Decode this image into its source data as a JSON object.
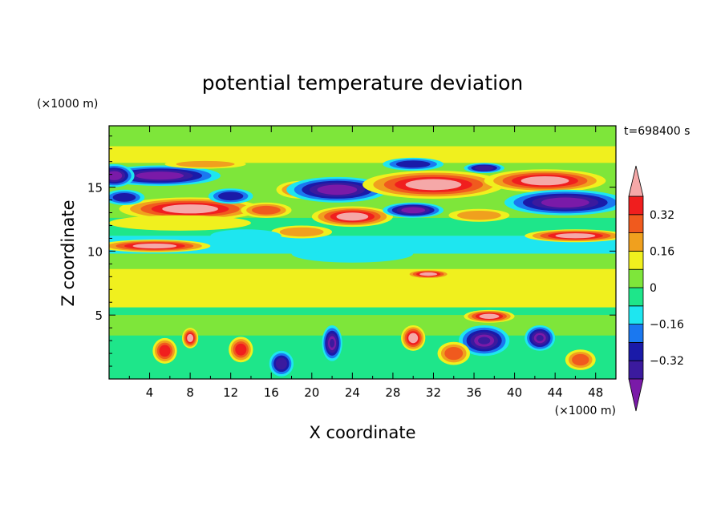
{
  "chart_data": {
    "type": "heatmap",
    "title": "potential temperature deviation",
    "xlabel": "X coordinate",
    "ylabel": "Z coordinate",
    "x_unit": "(×1000 m)",
    "y_unit": "(×1000 m)",
    "time_label": "t=698400 s",
    "xlim": [
      0,
      50
    ],
    "ylim": [
      0,
      19.8
    ],
    "x_ticks": [
      4,
      8,
      12,
      16,
      20,
      24,
      28,
      32,
      36,
      40,
      44,
      48
    ],
    "x_tick_labels": [
      "4",
      "8",
      "12",
      "16",
      "20",
      "24",
      "28",
      "32",
      "36",
      "40",
      "44",
      "48"
    ],
    "y_ticks": [
      5,
      10,
      15
    ],
    "y_tick_labels": [
      "5",
      "10",
      "15"
    ],
    "colorbar": {
      "levels": [
        -0.4,
        -0.32,
        -0.24,
        -0.16,
        -0.08,
        0,
        0.08,
        0.16,
        0.24,
        0.32,
        0.4
      ],
      "colors": [
        "#7a1aa8",
        "#3b1a9e",
        "#1a1aa8",
        "#1a78f0",
        "#1ee6f0",
        "#1ee68a",
        "#7ee63a",
        "#f0f01e",
        "#f0a01e",
        "#f05a1e",
        "#f01e1e",
        "#f5a8a8"
      ],
      "tick_values": [
        0.32,
        0.16,
        0,
        -0.16,
        -0.32
      ],
      "tick_labels": [
        "0.32",
        "0.16",
        "0",
        "−0.16",
        "−0.32"
      ],
      "extend": "both"
    },
    "features": [
      {
        "x": 5,
        "z": 15.9,
        "v": -0.45,
        "rx": 6,
        "rz": 0.8
      },
      {
        "x": 0.5,
        "z": 15.9,
        "v": -0.42,
        "rx": 2,
        "rz": 0.9
      },
      {
        "x": 9.5,
        "z": 16.8,
        "v": 0.2,
        "rx": 4,
        "rz": 0.35
      },
      {
        "x": 8,
        "z": 13.3,
        "v": 0.45,
        "rx": 7,
        "rz": 0.9
      },
      {
        "x": 7,
        "z": 12.2,
        "v": 0.12,
        "rx": 7,
        "rz": 0.6
      },
      {
        "x": 4.5,
        "z": 10.4,
        "v": 0.42,
        "rx": 5.5,
        "rz": 0.5
      },
      {
        "x": 1.5,
        "z": 14.2,
        "v": -0.3,
        "rx": 2,
        "rz": 0.6
      },
      {
        "x": 12,
        "z": 14.3,
        "v": -0.3,
        "rx": 2.2,
        "rz": 0.6
      },
      {
        "x": 19,
        "z": 14.8,
        "v": 0.3,
        "rx": 2.5,
        "rz": 0.7
      },
      {
        "x": 15.5,
        "z": 13.2,
        "v": 0.25,
        "rx": 2.5,
        "rz": 0.6
      },
      {
        "x": 22.5,
        "z": 14.8,
        "v": -0.42,
        "rx": 5,
        "rz": 1.0
      },
      {
        "x": 24,
        "z": 12.7,
        "v": 0.43,
        "rx": 4,
        "rz": 0.8
      },
      {
        "x": 30,
        "z": 13.2,
        "v": -0.42,
        "rx": 3,
        "rz": 0.6
      },
      {
        "x": 19,
        "z": 11.5,
        "v": 0.2,
        "rx": 3,
        "rz": 0.5
      },
      {
        "x": 32,
        "z": 15.2,
        "v": 0.45,
        "rx": 7,
        "rz": 1.1
      },
      {
        "x": 30,
        "z": 16.8,
        "v": -0.3,
        "rx": 3,
        "rz": 0.5
      },
      {
        "x": 37,
        "z": 16.5,
        "v": -0.35,
        "rx": 2,
        "rz": 0.4
      },
      {
        "x": 43,
        "z": 15.5,
        "v": 0.45,
        "rx": 6,
        "rz": 0.9
      },
      {
        "x": 45,
        "z": 13.8,
        "v": -0.45,
        "rx": 6,
        "rz": 1.0
      },
      {
        "x": 46,
        "z": 11.2,
        "v": 0.45,
        "rx": 5,
        "rz": 0.5
      },
      {
        "x": 36.5,
        "z": 12.8,
        "v": 0.2,
        "rx": 3,
        "rz": 0.5
      },
      {
        "x": 24,
        "z": 9.8,
        "v": -0.14,
        "rx": 6,
        "rz": 0.7
      },
      {
        "x": 13.5,
        "z": 11.2,
        "v": -0.1,
        "rx": 3.5,
        "rz": 0.5
      },
      {
        "x": 31.5,
        "z": 8.2,
        "v": 0.45,
        "rx": 2.2,
        "rz": 0.35
      },
      {
        "x": 12,
        "z": 7.2,
        "v": 0.09,
        "rx": 5,
        "rz": 0.8
      },
      {
        "x": 25,
        "z": 7.0,
        "v": 0.09,
        "rx": 6,
        "rz": 0.8
      },
      {
        "x": 44,
        "z": 7.5,
        "v": 0.09,
        "rx": 5,
        "rz": 0.7
      },
      {
        "x": 37.5,
        "z": 4.9,
        "v": 0.45,
        "rx": 2.5,
        "rz": 0.5
      },
      {
        "x": 30,
        "z": 3.2,
        "v": 0.45,
        "rx": 1.2,
        "rz": 1.0
      },
      {
        "x": 8,
        "z": 3.2,
        "v": 0.4,
        "rx": 0.8,
        "rz": 0.8
      },
      {
        "x": 37,
        "z": 3.0,
        "v": -0.4,
        "rx": 2.5,
        "rz": 1.2
      },
      {
        "x": 42.5,
        "z": 3.2,
        "v": -0.4,
        "rx": 1.5,
        "rz": 1.0
      },
      {
        "x": 22,
        "z": 2.8,
        "v": -0.4,
        "rx": 1.0,
        "rz": 1.4
      },
      {
        "x": 5.5,
        "z": 2.2,
        "v": 0.32,
        "rx": 1.2,
        "rz": 1.0
      },
      {
        "x": 13,
        "z": 2.3,
        "v": 0.32,
        "rx": 1.2,
        "rz": 1.0
      },
      {
        "x": 34,
        "z": 2.0,
        "v": 0.28,
        "rx": 1.6,
        "rz": 0.9
      },
      {
        "x": 46.5,
        "z": 1.5,
        "v": 0.3,
        "rx": 1.5,
        "rz": 0.8
      },
      {
        "x": 17,
        "z": 1.2,
        "v": -0.38,
        "rx": 1.2,
        "rz": 1.0
      }
    ]
  }
}
